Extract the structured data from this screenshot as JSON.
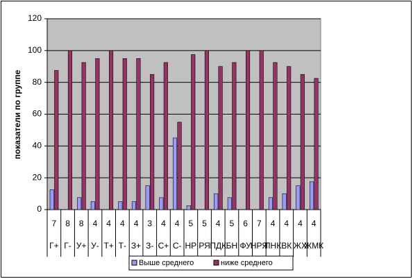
{
  "chart_data": {
    "type": "bar",
    "y_label": "показатели по группе",
    "category_numbers": [
      7,
      8,
      8,
      4,
      4,
      4,
      4,
      3,
      4,
      4,
      5,
      5,
      4,
      5,
      6,
      7,
      4,
      4,
      4,
      4
    ],
    "categories": [
      "Г+",
      "Г-",
      "У+",
      "У-",
      "Т+",
      "Т-",
      "З+",
      "З-",
      "С+",
      "С-",
      "НР",
      "РЯ",
      "ПДК",
      "БН",
      "ФУ",
      "НРЯ",
      "ПНК",
      "ВК",
      "ЖХ",
      "ЖМК"
    ],
    "series": [
      {
        "name": "Выше среднего",
        "color": "#9999ff",
        "values": [
          12.5,
          0,
          7.5,
          5,
          0,
          5,
          5,
          15,
          7.5,
          45,
          2.5,
          0,
          10,
          7.5,
          0,
          0,
          7.5,
          10,
          15,
          17.5
        ]
      },
      {
        "name": "ниже среднего",
        "color": "#993366",
        "values": [
          87.5,
          100,
          92.5,
          95,
          100,
          95,
          95,
          85,
          92.5,
          55,
          97.5,
          100,
          90,
          92.5,
          100,
          100,
          92.5,
          90,
          85,
          82.5
        ]
      }
    ],
    "ylim": [
      0,
      120
    ],
    "yticks": [
      0,
      20,
      40,
      60,
      80,
      100,
      120
    ],
    "grid": true,
    "plot_background": "#c0c0c0"
  }
}
